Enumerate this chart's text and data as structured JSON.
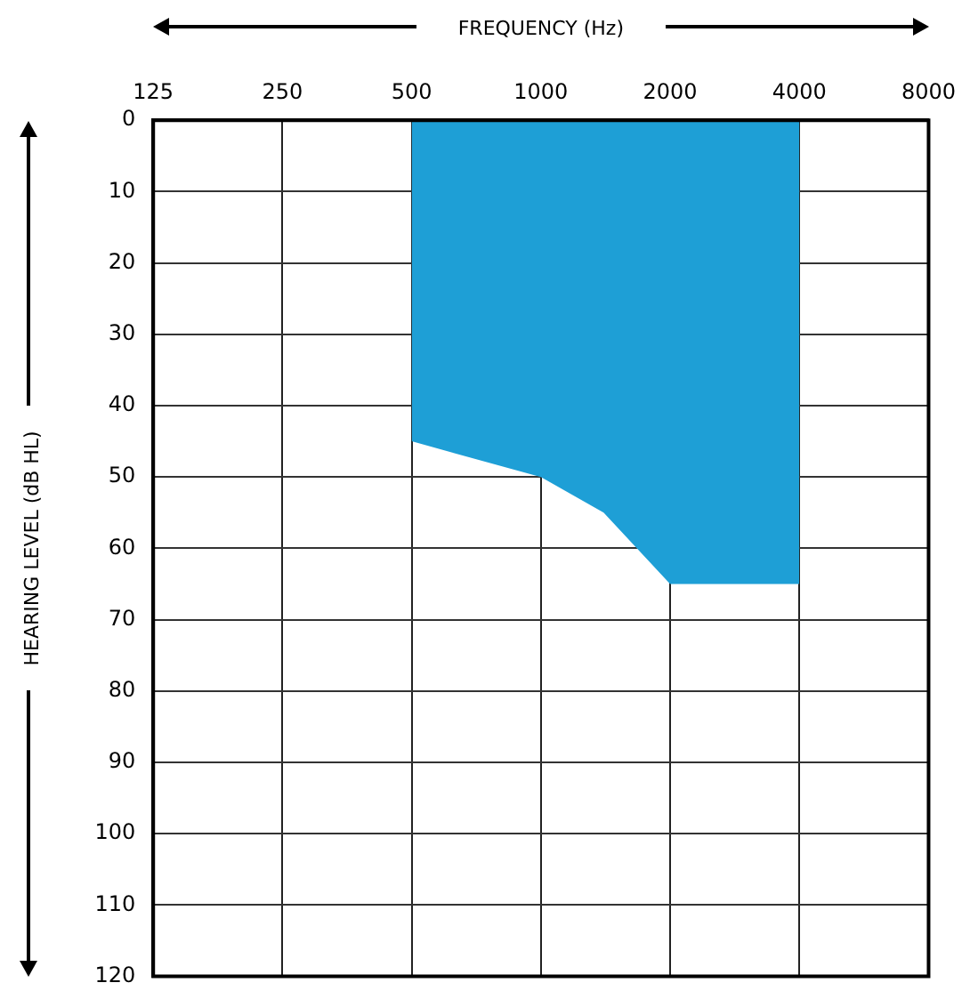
{
  "chart_data": {
    "type": "area",
    "xlabel": "FREQUENCY (Hz)",
    "ylabel": "HEARING LEVEL (dB HL)",
    "x": [
      500,
      1000,
      1400,
      2000,
      4000
    ],
    "series": [
      {
        "color": "#1e9fd6",
        "values": [
          45,
          50,
          55,
          65,
          65
        ]
      }
    ],
    "log": "x",
    "xlim": [
      125,
      8000
    ],
    "xticks": [
      125,
      250,
      500,
      1000,
      2000,
      4000,
      8000
    ],
    "ylim": [
      120,
      0
    ],
    "yticks": [
      0,
      10,
      20,
      30,
      40,
      50,
      60,
      70,
      80,
      90,
      100,
      110,
      120
    ],
    "grid": true,
    "legend": false
  }
}
